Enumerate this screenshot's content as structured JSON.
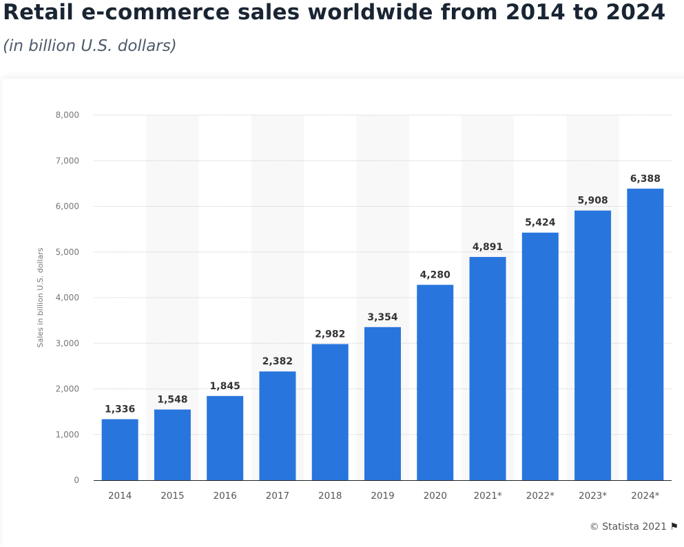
{
  "header": {
    "title": "Retail e-commerce sales worldwide from 2014 to 2024",
    "subtitle": "(in billion U.S. dollars)"
  },
  "chart_data": {
    "type": "bar",
    "categories": [
      "2014",
      "2015",
      "2016",
      "2017",
      "2018",
      "2019",
      "2020",
      "2021*",
      "2022*",
      "2023*",
      "2024*"
    ],
    "values": [
      1336,
      1548,
      1845,
      2382,
      2982,
      3354,
      4280,
      4891,
      5424,
      5908,
      6388
    ],
    "value_labels": [
      "1,336",
      "1,548",
      "1,845",
      "2,382",
      "2,982",
      "3,354",
      "4,280",
      "4,891",
      "5,424",
      "5,908",
      "6,388"
    ],
    "ylabel": "Sales in billion U.S. dollars",
    "ylim": [
      0,
      8000
    ],
    "yticks": [
      0,
      1000,
      2000,
      3000,
      4000,
      5000,
      6000,
      7000,
      8000
    ],
    "ytick_labels": [
      "0",
      "1,000",
      "2,000",
      "3,000",
      "4,000",
      "5,000",
      "6,000",
      "7,000",
      "8,000"
    ],
    "grid": true,
    "bar_color": "#2876dd"
  },
  "footer": {
    "credit": "© Statista 2021",
    "flag_icon": "flag-icon"
  }
}
